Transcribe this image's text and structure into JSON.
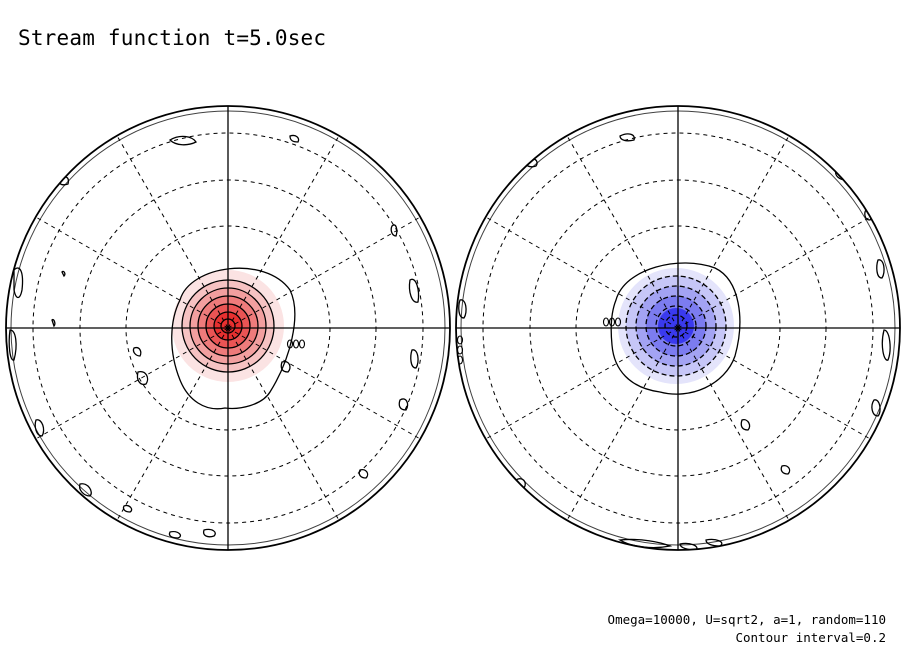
{
  "figure": {
    "title": "Stream function t=5.0sec",
    "parameters": "Omega=10000, U=sqrt2, a=1, random=110",
    "contour_interval": "Contour interval=0.2",
    "contour_label_left": "0.00",
    "contour_label_left_edge": "0.00",
    "contour_label_right": "0.00",
    "contour_label_right_edge": "0.00",
    "positive_color": "#e83030",
    "negative_color": "#3a3aee",
    "hemispheres": [
      {
        "id": "left",
        "sign": "positive",
        "fill_levels": 6
      },
      {
        "id": "right",
        "sign": "negative",
        "fill_levels": 5
      }
    ]
  }
}
